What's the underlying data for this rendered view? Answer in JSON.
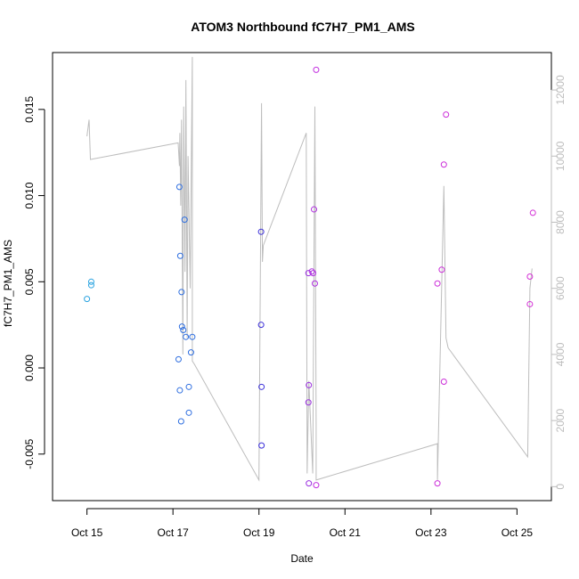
{
  "chart_data": {
    "type": "scatter",
    "title": "ATOM3 Northbound fC7H7_PM1_AMS",
    "xlabel": "Date",
    "ylabel": "fC7H7_PM1_AMS",
    "x_ticks": [
      {
        "value": 14.8,
        "label": "Oct 15"
      },
      {
        "value": 16.8,
        "label": "Oct 17"
      },
      {
        "value": 18.8,
        "label": "Oct 19"
      },
      {
        "value": 20.8,
        "label": "Oct 21"
      },
      {
        "value": 22.8,
        "label": "Oct 23"
      },
      {
        "value": 24.8,
        "label": "Oct 25"
      }
    ],
    "xlim": [
      14.0,
      25.6
    ],
    "ylim": [
      -0.0077,
      0.0183
    ],
    "y_ticks": [
      {
        "value": -0.005,
        "label": "-0.005"
      },
      {
        "value": 0.0,
        "label": "0.000"
      },
      {
        "value": 0.005,
        "label": "0.005"
      },
      {
        "value": 0.01,
        "label": "0.010"
      },
      {
        "value": 0.015,
        "label": "0.015"
      }
    ],
    "y2lim": [
      -422,
      13133
    ],
    "y2_ticks": [
      {
        "value": 0,
        "label": "0"
      },
      {
        "value": 2000,
        "label": "2000"
      },
      {
        "value": 4000,
        "label": "4000"
      },
      {
        "value": 6000,
        "label": "6000"
      },
      {
        "value": 8000,
        "label": "8000"
      },
      {
        "value": 10000,
        "label": "10000"
      },
      {
        "value": 12000,
        "label": "12000"
      }
    ],
    "grid": false,
    "points": [
      {
        "x": 14.8,
        "y": 0.004,
        "color": "#29a3e0"
      },
      {
        "x": 14.9,
        "y": 0.0048,
        "color": "#29a3e0"
      },
      {
        "x": 14.9,
        "y": 0.005,
        "color": "#29a3e0"
      },
      {
        "x": 16.95,
        "y": 0.0105,
        "color": "#2f6fe0"
      },
      {
        "x": 16.97,
        "y": 0.0065,
        "color": "#2f6fe0"
      },
      {
        "x": 16.93,
        "y": 0.0005,
        "color": "#2f6fe0"
      },
      {
        "x": 16.96,
        "y": -0.0013,
        "color": "#2f6fe0"
      },
      {
        "x": 16.99,
        "y": -0.0031,
        "color": "#2f6fe0"
      },
      {
        "x": 17.0,
        "y": 0.0044,
        "color": "#2f6fe0"
      },
      {
        "x": 17.01,
        "y": 0.0024,
        "color": "#2f6fe0"
      },
      {
        "x": 17.04,
        "y": 0.0022,
        "color": "#2f6fe0"
      },
      {
        "x": 17.07,
        "y": 0.0086,
        "color": "#2f6fe0"
      },
      {
        "x": 17.1,
        "y": 0.0018,
        "color": "#2f6fe0"
      },
      {
        "x": 17.17,
        "y": -0.0011,
        "color": "#2f6fe0"
      },
      {
        "x": 17.17,
        "y": -0.0026,
        "color": "#2f6fe0"
      },
      {
        "x": 17.22,
        "y": 0.0009,
        "color": "#2f6fe0"
      },
      {
        "x": 17.25,
        "y": 0.0018,
        "color": "#2f6fe0"
      },
      {
        "x": 18.85,
        "y": 0.0079,
        "color": "#3b2fd9"
      },
      {
        "x": 18.85,
        "y": 0.0025,
        "color": "#3b2fd9"
      },
      {
        "x": 18.86,
        "y": -0.0011,
        "color": "#3b2fd9"
      },
      {
        "x": 18.86,
        "y": -0.0045,
        "color": "#3b2fd9"
      },
      {
        "x": 19.95,
        "y": 0.0055,
        "color": "#9b30e0"
      },
      {
        "x": 19.96,
        "y": -0.001,
        "color": "#9b30e0"
      },
      {
        "x": 19.95,
        "y": -0.002,
        "color": "#9b30e0"
      },
      {
        "x": 19.96,
        "y": -0.0067,
        "color": "#9b30e0"
      },
      {
        "x": 20.03,
        "y": 0.0056,
        "color": "#b02fe0"
      },
      {
        "x": 20.06,
        "y": 0.0055,
        "color": "#b02fe0"
      },
      {
        "x": 20.08,
        "y": 0.0092,
        "color": "#b02fe0"
      },
      {
        "x": 20.1,
        "y": 0.0049,
        "color": "#b02fe0"
      },
      {
        "x": 20.13,
        "y": 0.0173,
        "color": "#c22fe0"
      },
      {
        "x": 20.13,
        "y": -0.0068,
        "color": "#c22fe0"
      },
      {
        "x": 22.95,
        "y": 0.0049,
        "color": "#cc2fd9"
      },
      {
        "x": 22.95,
        "y": -0.0067,
        "color": "#cc2fd9"
      },
      {
        "x": 23.05,
        "y": 0.0057,
        "color": "#cc2fd9"
      },
      {
        "x": 23.1,
        "y": 0.0118,
        "color": "#cc2fd9"
      },
      {
        "x": 23.1,
        "y": -0.0008,
        "color": "#cc2fd9"
      },
      {
        "x": 23.15,
        "y": 0.0147,
        "color": "#cc2fd9"
      },
      {
        "x": 25.1,
        "y": 0.0053,
        "color": "#d42fd6"
      },
      {
        "x": 25.1,
        "y": 0.0037,
        "color": "#d42fd6"
      },
      {
        "x": 25.17,
        "y": 0.009,
        "color": "#d42fd6"
      }
    ],
    "altitude_series": {
      "axis": "right",
      "color": "#bdbdbd",
      "x": [
        14.8,
        14.85,
        14.88,
        16.92,
        16.95,
        16.96,
        16.98,
        17.0,
        17.03,
        17.05,
        17.08,
        17.1,
        17.13,
        17.15,
        17.2,
        17.25,
        17.25,
        17.3,
        18.8,
        18.86,
        18.88,
        18.9,
        19.9,
        19.92,
        19.96,
        20.05,
        20.08,
        20.1,
        20.13,
        20.13,
        22.95,
        22.95,
        23.1,
        23.15,
        23.2,
        25.05,
        25.1,
        25.15
      ],
      "y": [
        10600,
        11100,
        9900,
        10400,
        9700,
        10700,
        8500,
        11100,
        4000,
        11500,
        6500,
        12300,
        4500,
        10000,
        6000,
        13000,
        3800,
        3700,
        200,
        11600,
        6800,
        7300,
        10700,
        400,
        3200,
        400,
        7000,
        11500,
        1900,
        200,
        1300,
        200,
        9100,
        4500,
        4200,
        900,
        6000,
        6600
      ]
    }
  }
}
